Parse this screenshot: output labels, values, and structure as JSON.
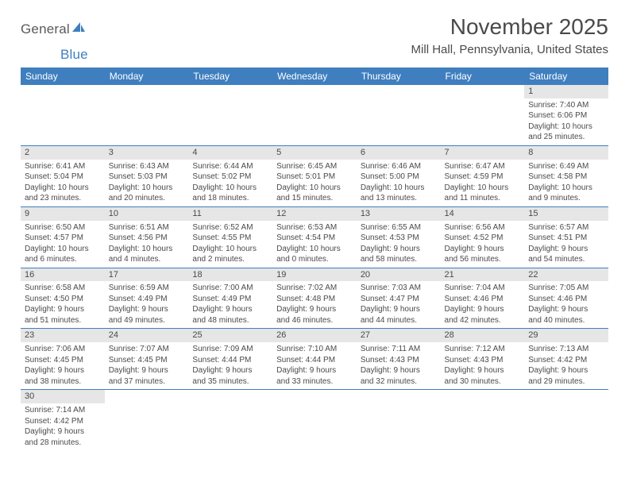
{
  "logo": {
    "part1": "General",
    "part2": "Blue",
    "sail_color": "#3f7fbf",
    "text1_color": "#5a5a5a",
    "text2_color": "#3f7fbf"
  },
  "title": "November 2025",
  "location": "Mill Hall, Pennsylvania, United States",
  "header_bg": "#3f7fbf",
  "daybar_bg": "#e6e6e6",
  "border_color": "#3f7fbf",
  "days": [
    "Sunday",
    "Monday",
    "Tuesday",
    "Wednesday",
    "Thursday",
    "Friday",
    "Saturday"
  ],
  "weeks": [
    [
      null,
      null,
      null,
      null,
      null,
      null,
      {
        "n": "1",
        "sr": "Sunrise: 7:40 AM",
        "ss": "Sunset: 6:06 PM",
        "dl1": "Daylight: 10 hours",
        "dl2": "and 25 minutes."
      }
    ],
    [
      {
        "n": "2",
        "sr": "Sunrise: 6:41 AM",
        "ss": "Sunset: 5:04 PM",
        "dl1": "Daylight: 10 hours",
        "dl2": "and 23 minutes."
      },
      {
        "n": "3",
        "sr": "Sunrise: 6:43 AM",
        "ss": "Sunset: 5:03 PM",
        "dl1": "Daylight: 10 hours",
        "dl2": "and 20 minutes."
      },
      {
        "n": "4",
        "sr": "Sunrise: 6:44 AM",
        "ss": "Sunset: 5:02 PM",
        "dl1": "Daylight: 10 hours",
        "dl2": "and 18 minutes."
      },
      {
        "n": "5",
        "sr": "Sunrise: 6:45 AM",
        "ss": "Sunset: 5:01 PM",
        "dl1": "Daylight: 10 hours",
        "dl2": "and 15 minutes."
      },
      {
        "n": "6",
        "sr": "Sunrise: 6:46 AM",
        "ss": "Sunset: 5:00 PM",
        "dl1": "Daylight: 10 hours",
        "dl2": "and 13 minutes."
      },
      {
        "n": "7",
        "sr": "Sunrise: 6:47 AM",
        "ss": "Sunset: 4:59 PM",
        "dl1": "Daylight: 10 hours",
        "dl2": "and 11 minutes."
      },
      {
        "n": "8",
        "sr": "Sunrise: 6:49 AM",
        "ss": "Sunset: 4:58 PM",
        "dl1": "Daylight: 10 hours",
        "dl2": "and 9 minutes."
      }
    ],
    [
      {
        "n": "9",
        "sr": "Sunrise: 6:50 AM",
        "ss": "Sunset: 4:57 PM",
        "dl1": "Daylight: 10 hours",
        "dl2": "and 6 minutes."
      },
      {
        "n": "10",
        "sr": "Sunrise: 6:51 AM",
        "ss": "Sunset: 4:56 PM",
        "dl1": "Daylight: 10 hours",
        "dl2": "and 4 minutes."
      },
      {
        "n": "11",
        "sr": "Sunrise: 6:52 AM",
        "ss": "Sunset: 4:55 PM",
        "dl1": "Daylight: 10 hours",
        "dl2": "and 2 minutes."
      },
      {
        "n": "12",
        "sr": "Sunrise: 6:53 AM",
        "ss": "Sunset: 4:54 PM",
        "dl1": "Daylight: 10 hours",
        "dl2": "and 0 minutes."
      },
      {
        "n": "13",
        "sr": "Sunrise: 6:55 AM",
        "ss": "Sunset: 4:53 PM",
        "dl1": "Daylight: 9 hours",
        "dl2": "and 58 minutes."
      },
      {
        "n": "14",
        "sr": "Sunrise: 6:56 AM",
        "ss": "Sunset: 4:52 PM",
        "dl1": "Daylight: 9 hours",
        "dl2": "and 56 minutes."
      },
      {
        "n": "15",
        "sr": "Sunrise: 6:57 AM",
        "ss": "Sunset: 4:51 PM",
        "dl1": "Daylight: 9 hours",
        "dl2": "and 54 minutes."
      }
    ],
    [
      {
        "n": "16",
        "sr": "Sunrise: 6:58 AM",
        "ss": "Sunset: 4:50 PM",
        "dl1": "Daylight: 9 hours",
        "dl2": "and 51 minutes."
      },
      {
        "n": "17",
        "sr": "Sunrise: 6:59 AM",
        "ss": "Sunset: 4:49 PM",
        "dl1": "Daylight: 9 hours",
        "dl2": "and 49 minutes."
      },
      {
        "n": "18",
        "sr": "Sunrise: 7:00 AM",
        "ss": "Sunset: 4:49 PM",
        "dl1": "Daylight: 9 hours",
        "dl2": "and 48 minutes."
      },
      {
        "n": "19",
        "sr": "Sunrise: 7:02 AM",
        "ss": "Sunset: 4:48 PM",
        "dl1": "Daylight: 9 hours",
        "dl2": "and 46 minutes."
      },
      {
        "n": "20",
        "sr": "Sunrise: 7:03 AM",
        "ss": "Sunset: 4:47 PM",
        "dl1": "Daylight: 9 hours",
        "dl2": "and 44 minutes."
      },
      {
        "n": "21",
        "sr": "Sunrise: 7:04 AM",
        "ss": "Sunset: 4:46 PM",
        "dl1": "Daylight: 9 hours",
        "dl2": "and 42 minutes."
      },
      {
        "n": "22",
        "sr": "Sunrise: 7:05 AM",
        "ss": "Sunset: 4:46 PM",
        "dl1": "Daylight: 9 hours",
        "dl2": "and 40 minutes."
      }
    ],
    [
      {
        "n": "23",
        "sr": "Sunrise: 7:06 AM",
        "ss": "Sunset: 4:45 PM",
        "dl1": "Daylight: 9 hours",
        "dl2": "and 38 minutes."
      },
      {
        "n": "24",
        "sr": "Sunrise: 7:07 AM",
        "ss": "Sunset: 4:45 PM",
        "dl1": "Daylight: 9 hours",
        "dl2": "and 37 minutes."
      },
      {
        "n": "25",
        "sr": "Sunrise: 7:09 AM",
        "ss": "Sunset: 4:44 PM",
        "dl1": "Daylight: 9 hours",
        "dl2": "and 35 minutes."
      },
      {
        "n": "26",
        "sr": "Sunrise: 7:10 AM",
        "ss": "Sunset: 4:44 PM",
        "dl1": "Daylight: 9 hours",
        "dl2": "and 33 minutes."
      },
      {
        "n": "27",
        "sr": "Sunrise: 7:11 AM",
        "ss": "Sunset: 4:43 PM",
        "dl1": "Daylight: 9 hours",
        "dl2": "and 32 minutes."
      },
      {
        "n": "28",
        "sr": "Sunrise: 7:12 AM",
        "ss": "Sunset: 4:43 PM",
        "dl1": "Daylight: 9 hours",
        "dl2": "and 30 minutes."
      },
      {
        "n": "29",
        "sr": "Sunrise: 7:13 AM",
        "ss": "Sunset: 4:42 PM",
        "dl1": "Daylight: 9 hours",
        "dl2": "and 29 minutes."
      }
    ],
    [
      {
        "n": "30",
        "sr": "Sunrise: 7:14 AM",
        "ss": "Sunset: 4:42 PM",
        "dl1": "Daylight: 9 hours",
        "dl2": "and 28 minutes."
      },
      null,
      null,
      null,
      null,
      null,
      null
    ]
  ]
}
